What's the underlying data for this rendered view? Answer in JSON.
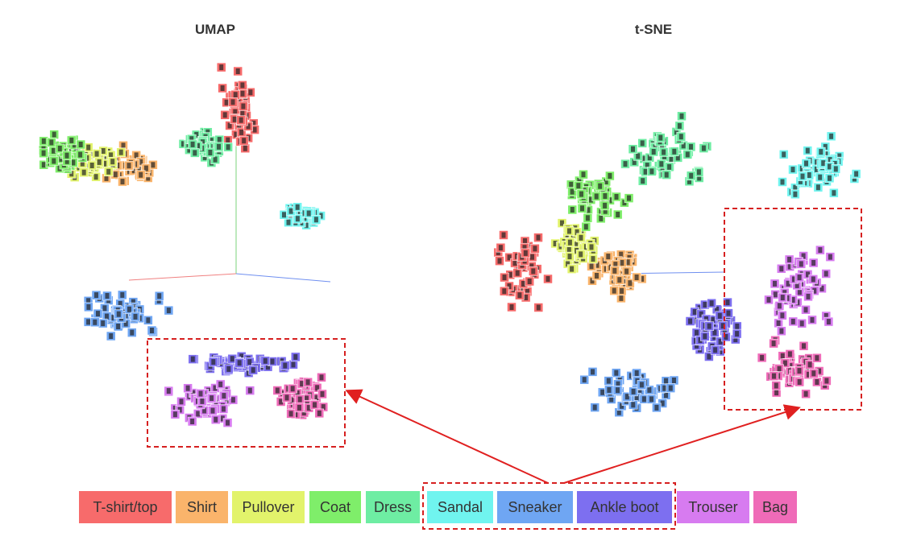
{
  "panels": [
    {
      "title": "UMAP"
    },
    {
      "title": "t-SNE"
    }
  ],
  "legend": [
    {
      "label": "T-shirt/top",
      "color": "#f76b6b"
    },
    {
      "label": "Shirt",
      "color": "#fab46b"
    },
    {
      "label": "Pullover",
      "color": "#e2f36b"
    },
    {
      "label": "Coat",
      "color": "#7fee6a"
    },
    {
      "label": "Dress",
      "color": "#6eeda3"
    },
    {
      "label": "Sandal",
      "color": "#70f4ef"
    },
    {
      "label": "Sneaker",
      "color": "#6fa6f3"
    },
    {
      "label": "Ankle boot",
      "color": "#7d6ff0"
    },
    {
      "label": "Trouser",
      "color": "#d77bf0"
    },
    {
      "label": "Bag",
      "color": "#ef6bb8"
    }
  ]
}
